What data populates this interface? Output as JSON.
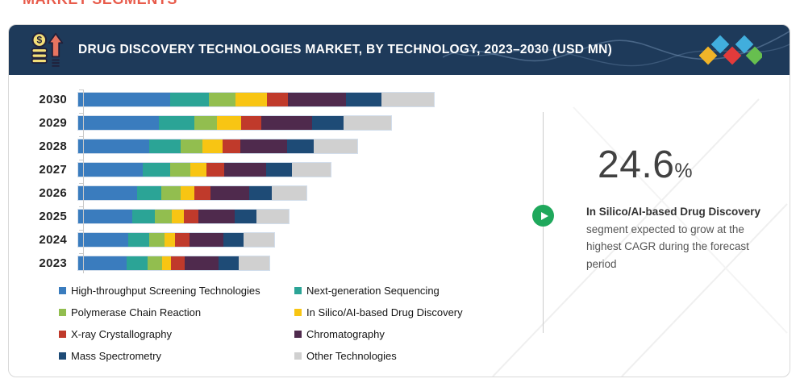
{
  "page": {
    "top_label": "MARKET SEGMENTS"
  },
  "header": {
    "title": "DRUG DISCOVERY TECHNOLOGIES MARKET, BY TECHNOLOGY, 2023–2030 (USD MN)",
    "bg_color": "#1E3A5A",
    "icon": "coins-growth-icon",
    "logo_diamond_colors": [
      "#F0B429",
      "#41AEDD",
      "#E23B3B",
      "#41AEDD",
      "#67BF4F"
    ]
  },
  "chart_data": {
    "type": "bar",
    "orientation": "horizontal",
    "stacked": true,
    "grid": false,
    "x_axis_labeled": false,
    "title": "Drug Discovery Technologies Market, by Technology, 2023–2030 (USD MN)",
    "categories": [
      "2030",
      "2029",
      "2028",
      "2027",
      "2026",
      "2025",
      "2024",
      "2023"
    ],
    "series": [
      {
        "name": "High-throughput Screening Technologies",
        "color": "#3A7CBE",
        "values": [
          113,
          100,
          88,
          80,
          73,
          67,
          62,
          60
        ]
      },
      {
        "name": "Next-generation Sequencing",
        "color": "#2BA496",
        "values": [
          48,
          43,
          38,
          33,
          30,
          28,
          26,
          26
        ]
      },
      {
        "name": "Polymerase Chain Reaction",
        "color": "#92BE4F",
        "values": [
          33,
          28,
          27,
          25,
          23,
          20,
          19,
          18
        ]
      },
      {
        "name": "In Silico/AI-based Drug Discovery",
        "color": "#F8C513",
        "values": [
          39,
          30,
          25,
          20,
          17,
          15,
          12,
          10
        ]
      },
      {
        "name": "X-ray Crystallography",
        "color": "#C03A2B",
        "values": [
          26,
          25,
          22,
          22,
          20,
          18,
          18,
          17
        ]
      },
      {
        "name": "Chromatography",
        "color": "#4F2A4D",
        "values": [
          71,
          63,
          58,
          52,
          48,
          45,
          42,
          42
        ]
      },
      {
        "name": "Mass Spectrometry",
        "color": "#1E4B76",
        "values": [
          44,
          39,
          33,
          32,
          28,
          27,
          25,
          25
        ]
      },
      {
        "name": "Other Technologies",
        "color": "#D0D0D0",
        "values": [
          65,
          58,
          53,
          48,
          43,
          40,
          38,
          38
        ]
      }
    ],
    "values_note": "relative segment sizes estimated from bar lengths; numeric axis not shown in figure",
    "legend_position": "bottom-left, two columns"
  },
  "highlight": {
    "cagr_value": "24.6",
    "percent_sign": "%",
    "bold_text": "In Silico/AI-based Drug Discovery",
    "text": " segment expected to grow at the highest CAGR during the forecast period",
    "accent_green": "#1FA85C"
  }
}
